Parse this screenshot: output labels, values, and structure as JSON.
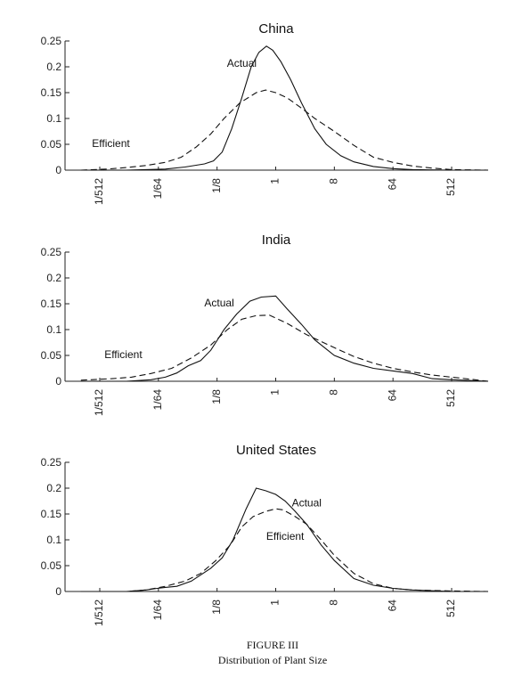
{
  "figure": {
    "caption_label": "FIGURE III",
    "caption_title": "Distribution of Plant Size"
  },
  "chart_data": [
    {
      "type": "line",
      "title": "China",
      "xscale": "log2",
      "xtick_labels": [
        "1/512",
        "1/64",
        "1/8",
        "1",
        "8",
        "64",
        "512"
      ],
      "xtick_values": [
        0.001953125,
        0.015625,
        0.125,
        1,
        8,
        64,
        512
      ],
      "yticks": [
        0,
        0.05,
        0.1,
        0.15,
        0.2,
        0.25
      ],
      "ytick_labels": [
        "0",
        "0.05",
        "0.1",
        "0.15",
        "0.2",
        "0.25"
      ],
      "ylim": [
        0,
        0.25
      ],
      "annotations": [
        {
          "text": "Actual",
          "x": 0.3,
          "y": 0.2
        },
        {
          "text": "Efficient",
          "x": 0.0029,
          "y": 0.045
        }
      ],
      "series": [
        {
          "name": "Actual",
          "style": "solid",
          "points": [
            [
              0.001,
              0
            ],
            [
              0.005,
              0
            ],
            [
              0.02,
              0.002
            ],
            [
              0.04,
              0.006
            ],
            [
              0.08,
              0.012
            ],
            [
              0.11,
              0.018
            ],
            [
              0.15,
              0.035
            ],
            [
              0.21,
              0.08
            ],
            [
              0.3,
              0.14
            ],
            [
              0.42,
              0.2
            ],
            [
              0.55,
              0.228
            ],
            [
              0.72,
              0.24
            ],
            [
              0.9,
              0.232
            ],
            [
              1.2,
              0.21
            ],
            [
              1.7,
              0.175
            ],
            [
              2.5,
              0.13
            ],
            [
              4,
              0.08
            ],
            [
              6,
              0.05
            ],
            [
              10,
              0.028
            ],
            [
              16,
              0.016
            ],
            [
              32,
              0.007
            ],
            [
              64,
              0.003
            ],
            [
              128,
              0.001
            ],
            [
              512,
              0
            ],
            [
              2000,
              0
            ]
          ]
        },
        {
          "name": "Efficient",
          "style": "dashed",
          "points": [
            [
              0.001,
              0
            ],
            [
              0.0025,
              0.002
            ],
            [
              0.005,
              0.005
            ],
            [
              0.01,
              0.009
            ],
            [
              0.02,
              0.015
            ],
            [
              0.035,
              0.025
            ],
            [
              0.06,
              0.045
            ],
            [
              0.1,
              0.07
            ],
            [
              0.16,
              0.1
            ],
            [
              0.28,
              0.13
            ],
            [
              0.5,
              0.15
            ],
            [
              0.7,
              0.155
            ],
            [
              1,
              0.15
            ],
            [
              1.5,
              0.14
            ],
            [
              2.5,
              0.12
            ],
            [
              4,
              0.1
            ],
            [
              8,
              0.075
            ],
            [
              16,
              0.048
            ],
            [
              32,
              0.025
            ],
            [
              64,
              0.015
            ],
            [
              128,
              0.008
            ],
            [
              256,
              0.004
            ],
            [
              512,
              0.001
            ],
            [
              2000,
              0
            ]
          ]
        }
      ]
    },
    {
      "type": "line",
      "title": "India",
      "xscale": "log2",
      "xtick_labels": [
        "1/512",
        "1/64",
        "1/8",
        "1",
        "8",
        "64",
        "512"
      ],
      "xtick_values": [
        0.001953125,
        0.015625,
        0.125,
        1,
        8,
        64,
        512
      ],
      "yticks": [
        0,
        0.05,
        0.1,
        0.15,
        0.2,
        0.25
      ],
      "ytick_labels": [
        "0",
        "0.05",
        "0.1",
        "0.15",
        "0.2",
        "0.25"
      ],
      "ylim": [
        0,
        0.25
      ],
      "annotations": [
        {
          "text": "Actual",
          "x": 0.135,
          "y": 0.145
        },
        {
          "text": "Efficient",
          "x": 0.0045,
          "y": 0.045
        }
      ],
      "series": [
        {
          "name": "Actual",
          "style": "solid",
          "points": [
            [
              0.001,
              0
            ],
            [
              0.005,
              0
            ],
            [
              0.012,
              0.003
            ],
            [
              0.02,
              0.008
            ],
            [
              0.03,
              0.016
            ],
            [
              0.045,
              0.03
            ],
            [
              0.07,
              0.04
            ],
            [
              0.1,
              0.06
            ],
            [
              0.16,
              0.1
            ],
            [
              0.25,
              0.13
            ],
            [
              0.4,
              0.155
            ],
            [
              0.6,
              0.163
            ],
            [
              1,
              0.165
            ],
            [
              1.5,
              0.14
            ],
            [
              2.5,
              0.11
            ],
            [
              4,
              0.08
            ],
            [
              8,
              0.05
            ],
            [
              16,
              0.035
            ],
            [
              32,
              0.025
            ],
            [
              64,
              0.02
            ],
            [
              128,
              0.015
            ],
            [
              256,
              0.005
            ],
            [
              512,
              0.003
            ],
            [
              2000,
              0
            ]
          ]
        },
        {
          "name": "Efficient",
          "style": "dashed",
          "points": [
            [
              0.001,
              0.002
            ],
            [
              0.003,
              0.005
            ],
            [
              0.006,
              0.008
            ],
            [
              0.012,
              0.015
            ],
            [
              0.025,
              0.025
            ],
            [
              0.05,
              0.045
            ],
            [
              0.1,
              0.07
            ],
            [
              0.18,
              0.1
            ],
            [
              0.3,
              0.12
            ],
            [
              0.5,
              0.127
            ],
            [
              0.8,
              0.128
            ],
            [
              1.5,
              0.112
            ],
            [
              3,
              0.09
            ],
            [
              8,
              0.065
            ],
            [
              16,
              0.048
            ],
            [
              32,
              0.035
            ],
            [
              64,
              0.025
            ],
            [
              128,
              0.018
            ],
            [
              256,
              0.012
            ],
            [
              512,
              0.008
            ],
            [
              1000,
              0.004
            ],
            [
              2000,
              0
            ]
          ]
        }
      ]
    },
    {
      "type": "line",
      "title": "United States",
      "xscale": "log2",
      "xtick_labels": [
        "1/512",
        "1/64",
        "1/8",
        "1",
        "8",
        "64",
        "512"
      ],
      "xtick_values": [
        0.001953125,
        0.015625,
        0.125,
        1,
        8,
        64,
        512
      ],
      "yticks": [
        0,
        0.05,
        0.1,
        0.15,
        0.2,
        0.25
      ],
      "ytick_labels": [
        "0",
        "0.05",
        "0.1",
        "0.15",
        "0.2",
        "0.25"
      ],
      "ylim": [
        0,
        0.25
      ],
      "annotations": [
        {
          "text": "Actual",
          "x": 3,
          "y": 0.165
        },
        {
          "text": "Efficient",
          "x": 1.4,
          "y": 0.1
        }
      ],
      "series": [
        {
          "name": "Actual",
          "style": "solid",
          "points": [
            [
              0.001,
              0
            ],
            [
              0.005,
              0
            ],
            [
              0.01,
              0.003
            ],
            [
              0.015,
              0.006
            ],
            [
              0.02,
              0.008
            ],
            [
              0.03,
              0.01
            ],
            [
              0.05,
              0.02
            ],
            [
              0.1,
              0.045
            ],
            [
              0.15,
              0.065
            ],
            [
              0.22,
              0.1
            ],
            [
              0.35,
              0.16
            ],
            [
              0.5,
              0.2
            ],
            [
              0.7,
              0.195
            ],
            [
              1,
              0.188
            ],
            [
              1.4,
              0.175
            ],
            [
              2,
              0.155
            ],
            [
              3,
              0.13
            ],
            [
              5,
              0.09
            ],
            [
              8,
              0.06
            ],
            [
              16,
              0.025
            ],
            [
              32,
              0.012
            ],
            [
              64,
              0.006
            ],
            [
              128,
              0.003
            ],
            [
              512,
              0
            ],
            [
              2000,
              0
            ]
          ]
        },
        {
          "name": "Efficient",
          "style": "dashed",
          "points": [
            [
              0.001,
              0
            ],
            [
              0.005,
              0
            ],
            [
              0.01,
              0.003
            ],
            [
              0.02,
              0.01
            ],
            [
              0.04,
              0.02
            ],
            [
              0.07,
              0.035
            ],
            [
              0.12,
              0.06
            ],
            [
              0.2,
              0.09
            ],
            [
              0.3,
              0.125
            ],
            [
              0.45,
              0.145
            ],
            [
              0.7,
              0.155
            ],
            [
              1,
              0.16
            ],
            [
              1.3,
              0.158
            ],
            [
              2,
              0.145
            ],
            [
              3,
              0.13
            ],
            [
              5,
              0.1
            ],
            [
              8,
              0.07
            ],
            [
              16,
              0.035
            ],
            [
              32,
              0.015
            ],
            [
              64,
              0.006
            ],
            [
              128,
              0.003
            ],
            [
              512,
              0.001
            ],
            [
              2000,
              0
            ]
          ]
        }
      ]
    }
  ]
}
